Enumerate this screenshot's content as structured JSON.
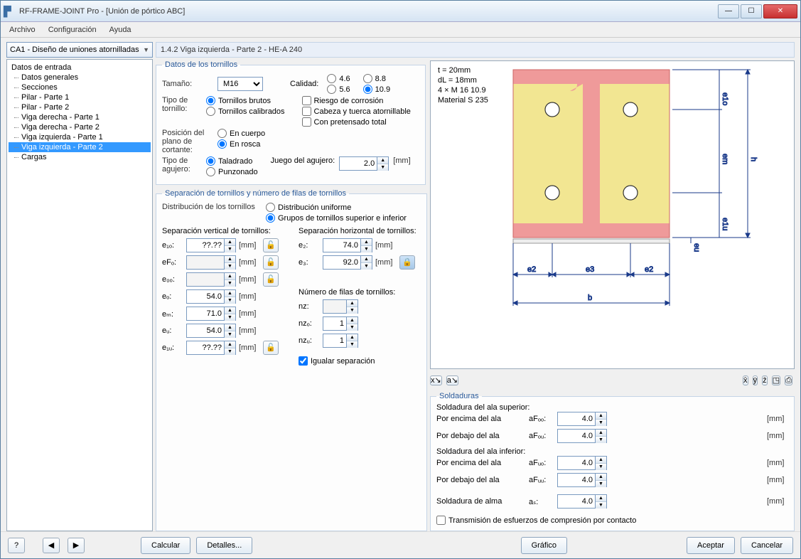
{
  "window": {
    "title": "RF-FRAME-JOINT Pro - [Unión de pórtico ABC]"
  },
  "menu": {
    "file": "Archivo",
    "config": "Configuración",
    "help": "Ayuda"
  },
  "sidebar": {
    "combo": "CA1 - Diseño de uniones atornilladas",
    "root": "Datos de entrada",
    "items": [
      "Datos generales",
      "Secciones",
      "Pilar - Parte 1",
      "Pilar - Parte 2",
      "Viga derecha - Parte 1",
      "Viga derecha - Parte 2",
      "Viga izquierda - Parte 1",
      "Viga izquierda - Parte 2",
      "Cargas"
    ],
    "selectedIndex": 7
  },
  "header": "1.4.2 Viga izquierda - Parte 2 - HE-A 240",
  "groups": {
    "tornillos": {
      "legend": "Datos de los tornillos",
      "tamano_lbl": "Tamaño:",
      "tamano_val": "M16",
      "calidad_lbl": "Calidad:",
      "q": [
        "4.6",
        "8.8",
        "5.6",
        "10.9"
      ],
      "tipo_tornillo_lbl": "Tipo de tornillo:",
      "tt1": "Tornillos brutos",
      "tt2": "Tornillos calibrados",
      "riesgo": "Riesgo de corrosión",
      "cabeza": "Cabeza y tuerca atornillable",
      "pretensado": "Con pretensado total",
      "plano_lbl": "Posición del plano de cortante:",
      "p1": "En cuerpo",
      "p2": "En rosca",
      "agujero_lbl": "Tipo de agujero:",
      "a1": "Taladrado",
      "a2": "Punzonado",
      "juego_lbl": "Juego del agujero:",
      "juego_val": "2.0",
      "mm": "[mm]"
    },
    "separacion": {
      "legend": "Separación de tornillos y número de filas de tornillos",
      "dist_lbl": "Distribución de los tornillos",
      "d1": "Distribución uniforme",
      "d2": "Grupos de tornillos superior e inferior",
      "sepV": "Separación vertical de tornillos:",
      "sepH": "Separación horizontal de tornillos:",
      "e1o": "e₁ₒ:",
      "e1o_v": "??.??",
      "eFo": "eFₒ:",
      "eFo_v": "",
      "e0o": "e₀ₒ:",
      "e0o_v": "",
      "eo": "eₒ:",
      "eo_v": "54.0",
      "em": "eₘ:",
      "em_v": "71.0",
      "eu": "eᵤ:",
      "eu_v": "54.0",
      "e1u": "e₁ᵤ:",
      "e1u_v": "??.??",
      "e2": "e₂:",
      "e2_v": "74.0",
      "e3": "e₃:",
      "e3_v": "92.0",
      "nfilas": "Número de filas de tornillos:",
      "nz": "nz:",
      "nz_v": "",
      "nzo": "nzₒ:",
      "nzo_v": "1",
      "nzu": "nzᵤ:",
      "nzu_v": "1",
      "igualar": "Igualar separación",
      "mm": "[mm]"
    },
    "soldaduras": {
      "legend": "Soldaduras",
      "sup": "Soldadura del ala superior:",
      "encima": "Por encima del ala",
      "debajo": "Por debajo del ala",
      "inf": "Soldadura del ala inferior:",
      "alma": "Soldadura de alma",
      "aFoo": "aFₒₒ:",
      "aFou": "aFₒᵤ:",
      "aFuo": "aFᵤₒ:",
      "aFuu": "aFᵤᵤ:",
      "as": "aₛ:",
      "v": "4.0",
      "mm": "[mm]",
      "trans": "Transmisión de esfuerzos de compresión por contacto"
    }
  },
  "canvas": {
    "t": "t = 20mm",
    "dL": "dL = 18mm",
    "bolts": "4 × M 16 10.9",
    "mat": "Material S 235",
    "e2": "e2",
    "e3": "e3",
    "b": "b",
    "h": "h",
    "e1o": "e1o",
    "em": "em",
    "e1u": "e1u",
    "eu": "eu"
  },
  "buttons": {
    "calcular": "Calcular",
    "detalles": "Detalles...",
    "grafico": "Gráfico",
    "aceptar": "Aceptar",
    "cancelar": "Cancelar"
  }
}
